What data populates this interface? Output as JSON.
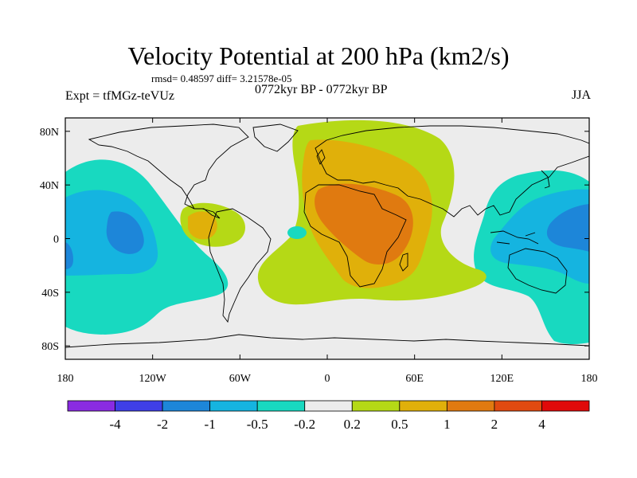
{
  "title": "Velocity Potential at 200 hPa (km2/s)",
  "stats_line": "rmsd= 0.48597 diff= 3.21578e-05",
  "left_label": "Expt = tfMGz-teVUz",
  "center_label": "0772kyr BP - 0772kyr BP",
  "right_label": "JJA",
  "lat_ticks": [
    "80N",
    "40N",
    "0",
    "40S",
    "80S"
  ],
  "lat_values": [
    80,
    40,
    0,
    -40,
    -80
  ],
  "lon_ticks": [
    "180",
    "120W",
    "60W",
    "0",
    "60E",
    "120E",
    "180"
  ],
  "lon_values": [
    -180,
    -120,
    -60,
    0,
    60,
    120,
    180
  ],
  "map_extent": {
    "lon": [
      -180,
      180
    ],
    "lat": [
      -90,
      90
    ]
  },
  "colorbar": {
    "colors": [
      "#8a2be2",
      "#3f3fe6",
      "#1d86d9",
      "#15b4e0",
      "#18d9c0",
      "#ececec",
      "#b5d916",
      "#e0b00a",
      "#e07a10",
      "#e04a10",
      "#e00a0a"
    ],
    "labels": [
      "-4",
      "-2",
      "-1",
      "-0.5",
      "-0.2",
      "0.2",
      "0.5",
      "1",
      "2",
      "4"
    ]
  },
  "chart_data": {
    "type": "heatmap",
    "title": "Velocity Potential at 200 hPa (km2/s)",
    "variable": "velocity potential",
    "units": "km2/s",
    "levels": [
      -4,
      -2,
      -1,
      -0.5,
      -0.2,
      0.2,
      0.5,
      1,
      2,
      4
    ],
    "x_ticks": [
      "180",
      "120W",
      "60W",
      "0",
      "60E",
      "120E",
      "180"
    ],
    "y_ticks": [
      "80N",
      "40N",
      "0",
      "40S",
      "80S"
    ],
    "xlim": [
      -180,
      180
    ],
    "ylim": [
      -90,
      90
    ],
    "season": "JJA"
  }
}
